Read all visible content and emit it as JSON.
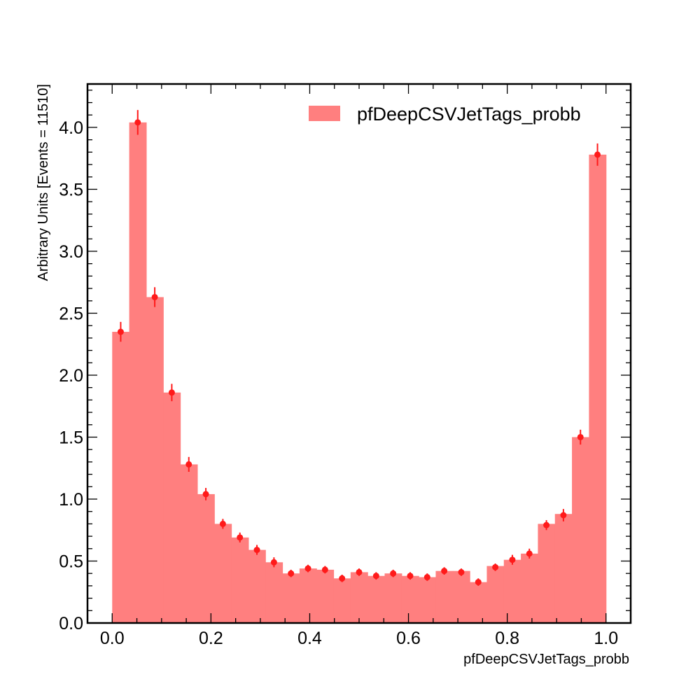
{
  "chart_data": {
    "type": "bar",
    "subtype": "histogram",
    "xlabel": "pfDeepCSVJetTags_probb",
    "ylabel": "Arbitrary Units [Events = 11510]",
    "xlim": [
      -0.05,
      1.05
    ],
    "ylim": [
      0,
      4.35
    ],
    "x_ticks": [
      "0.0",
      "0.2",
      "0.4",
      "0.6",
      "0.8",
      "1.0"
    ],
    "y_ticks": [
      "0.0",
      "0.5",
      "1.0",
      "1.5",
      "2.0",
      "2.5",
      "3.0",
      "3.5",
      "4.0"
    ],
    "grid": false,
    "legend_position": "top-right",
    "bin_edges_range": [
      0.0,
      1.0
    ],
    "n_bins": 29,
    "series": [
      {
        "name": "pfDeepCSVJetTags_probb",
        "style": "filled-histogram",
        "values": [
          2.35,
          4.04,
          2.63,
          1.86,
          1.28,
          1.04,
          0.8,
          0.69,
          0.59,
          0.49,
          0.4,
          0.44,
          0.43,
          0.36,
          0.41,
          0.38,
          0.4,
          0.38,
          0.37,
          0.42,
          0.42,
          0.33,
          0.46,
          0.51,
          0.56,
          0.8,
          0.88,
          1.5,
          3.78
        ]
      }
    ],
    "points": {
      "style": "markers-with-error-bars",
      "values": [
        2.35,
        4.04,
        2.63,
        1.86,
        1.28,
        1.04,
        0.8,
        0.69,
        0.59,
        0.49,
        0.4,
        0.44,
        0.43,
        0.36,
        0.41,
        0.38,
        0.4,
        0.38,
        0.37,
        0.42,
        0.41,
        0.33,
        0.45,
        0.51,
        0.56,
        0.79,
        0.87,
        1.5,
        3.78
      ],
      "errors": [
        0.08,
        0.1,
        0.08,
        0.07,
        0.06,
        0.05,
        0.04,
        0.04,
        0.04,
        0.04,
        0.03,
        0.03,
        0.03,
        0.03,
        0.03,
        0.03,
        0.03,
        0.03,
        0.03,
        0.03,
        0.03,
        0.03,
        0.03,
        0.04,
        0.04,
        0.04,
        0.05,
        0.06,
        0.09
      ]
    },
    "colors": {
      "fill": "#ff7f7f",
      "marker": "#ff1a1a",
      "axis": "#000000"
    }
  }
}
